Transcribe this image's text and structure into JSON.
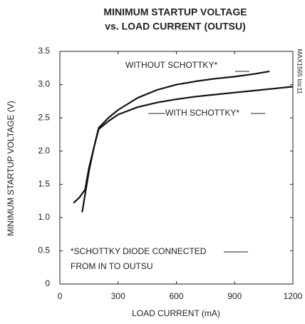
{
  "chart_data": {
    "type": "line",
    "title": [
      "MINIMUM STARTUP VOLTAGE",
      "vs. LOAD CURRENT (OUTSU)"
    ],
    "x_label": "LOAD CURRENT (mA)",
    "y_label": "MINIMUM STARTUP VOLTAGE (V)",
    "side_label": "MAX1565 toc11",
    "note": [
      "*SCHOTTKY DIODE CONNECTED",
      "FROM IN TO OUTSU"
    ],
    "xlim": [
      0,
      1200
    ],
    "xticks": [
      0,
      300,
      600,
      900,
      1200
    ],
    "ylim": [
      0,
      3.5
    ],
    "yticks": [
      {
        "value": 0,
        "label": "0"
      },
      0.5,
      {
        "value": 1,
        "label": "1.0"
      },
      1.5,
      {
        "value": 2,
        "label": "2.0"
      },
      2.5,
      {
        "value": 3,
        "label": "3.0"
      },
      3.5
    ],
    "series": [
      {
        "name": "WITHOUT SCHOTTKY*",
        "color": "#111111",
        "x": [
          115,
          130,
          150,
          175,
          200,
          250,
          300,
          400,
          500,
          600,
          700,
          800,
          900,
          1000,
          1080
        ],
        "values": [
          1.08,
          1.35,
          1.7,
          2.05,
          2.35,
          2.5,
          2.62,
          2.8,
          2.92,
          3.0,
          3.05,
          3.09,
          3.12,
          3.16,
          3.2
        ]
      },
      {
        "name": "WITH SCHOTTKY*",
        "color": "#111111",
        "x": [
          70,
          100,
          130,
          150,
          175,
          200,
          250,
          300,
          400,
          500,
          600,
          700,
          800,
          900,
          1000,
          1100,
          1200
        ],
        "values": [
          1.22,
          1.3,
          1.42,
          1.75,
          2.05,
          2.33,
          2.45,
          2.55,
          2.66,
          2.73,
          2.78,
          2.82,
          2.85,
          2.88,
          2.91,
          2.94,
          2.97
        ]
      }
    ]
  }
}
